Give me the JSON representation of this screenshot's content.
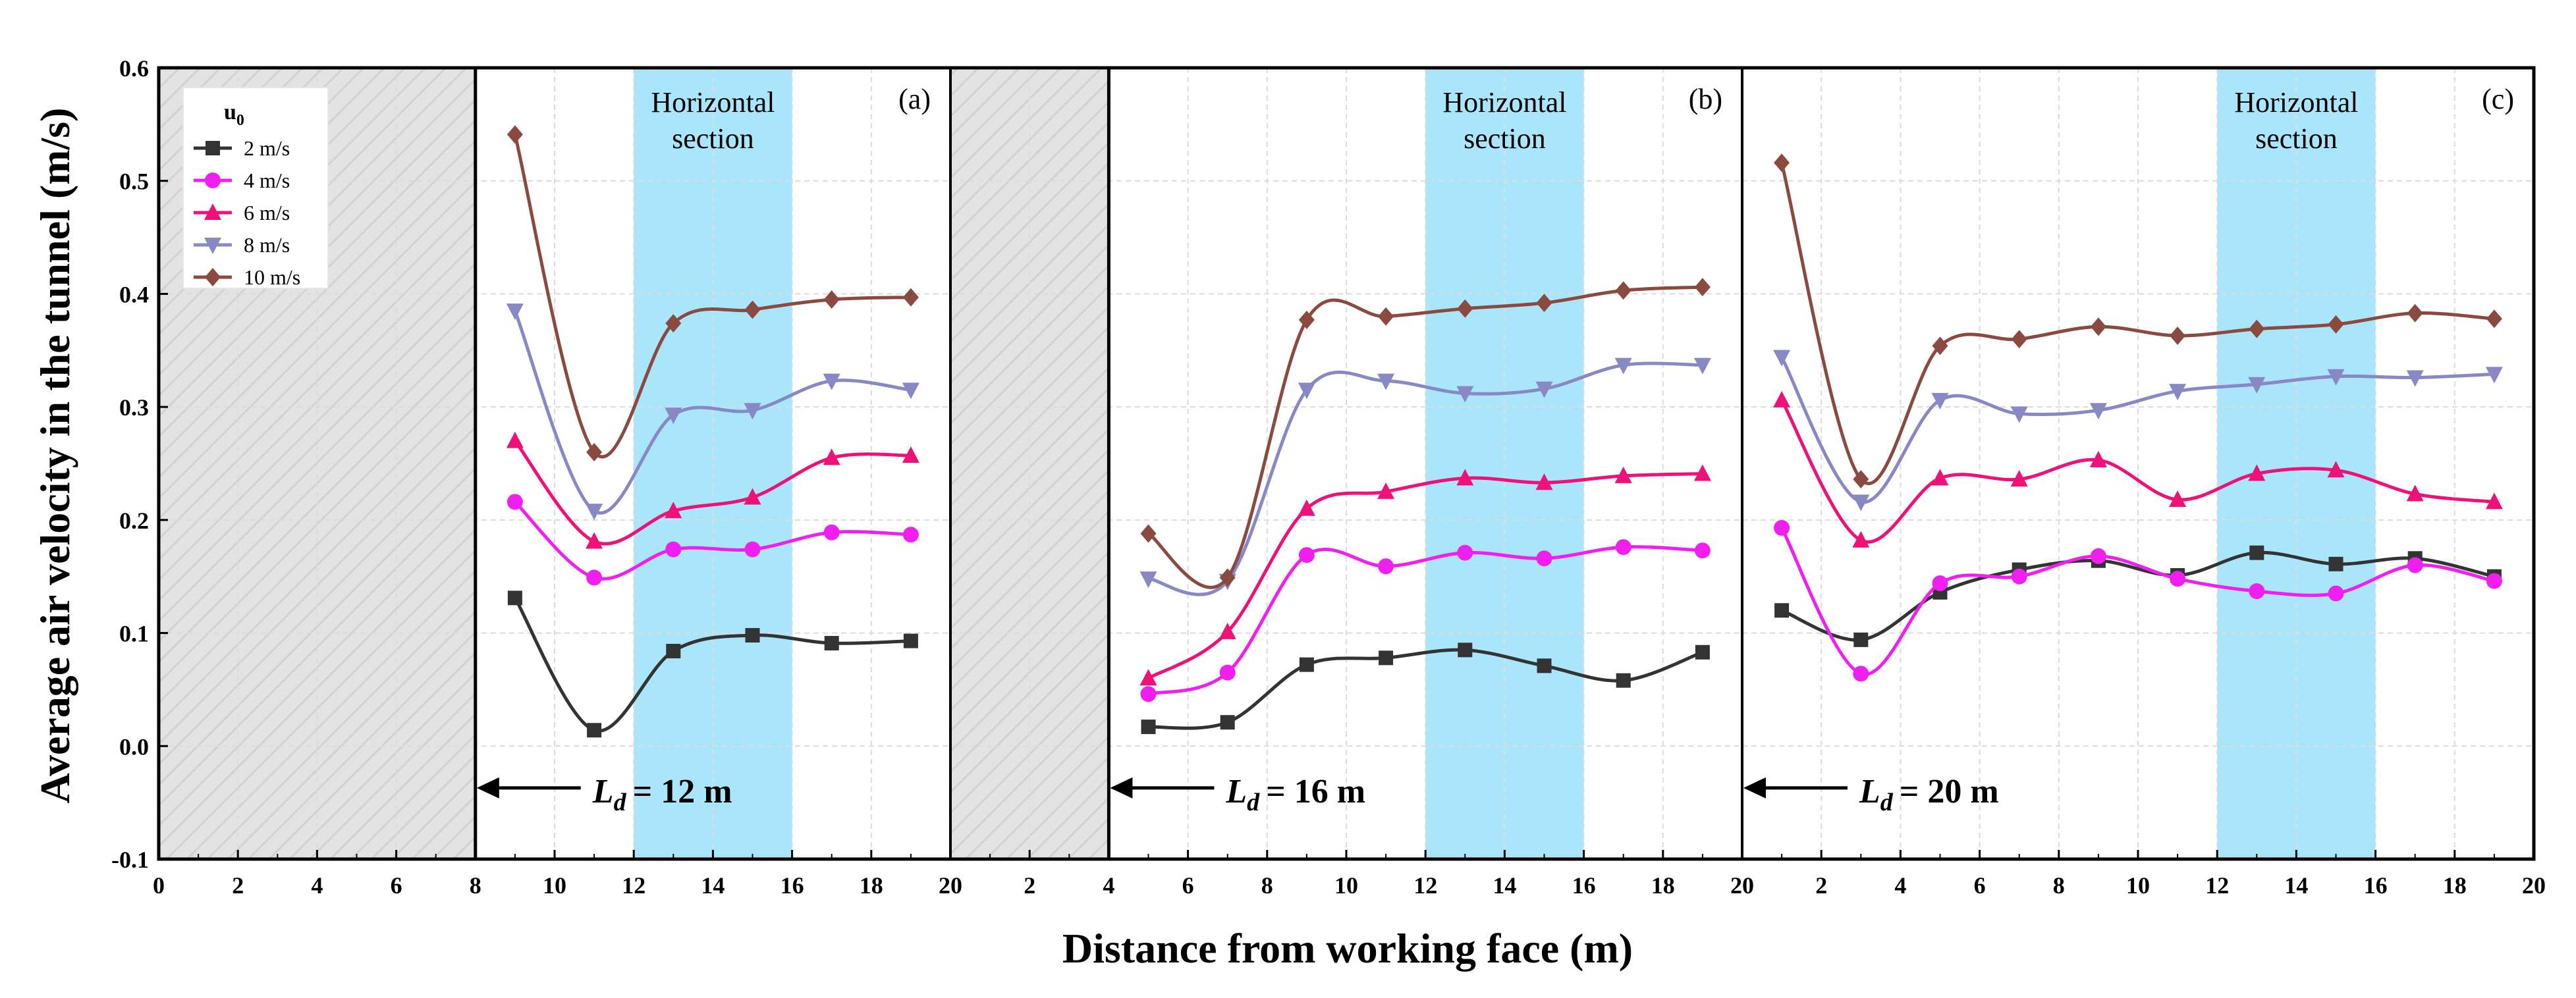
{
  "chart_data": {
    "type": "line",
    "xlabel": "Distance from working face (m)",
    "ylabel": "Average air velocity in the tunnel (m/s)",
    "ylim": [
      -0.1,
      0.6
    ],
    "y_ticks": [
      "-0.1",
      "0.0",
      "0.1",
      "0.2",
      "0.3",
      "0.4",
      "0.5",
      "0.6"
    ],
    "legend": {
      "title": "u",
      "title_sub": "0",
      "position": "top-left",
      "entries": [
        "2 m/s",
        "4 m/s",
        "6 m/s",
        "8 m/s",
        "10 m/s"
      ]
    },
    "shaded_label_line1": "Horizontal",
    "shaded_label_line2": "section",
    "ld_prefix": "L",
    "ld_sub": "d",
    "colors": {
      "2 m/s": "#333333",
      "4 m/s": "#f01ff0",
      "6 m/s": "#ee1177",
      "8 m/s": "#8888c4",
      "10 m/s": "#8b4a3f",
      "horizontal_section": "#aae6fb",
      "hatch": "#e0e0e0"
    },
    "panels": [
      {
        "label": "(a)",
        "xlim": [
          0,
          20
        ],
        "x_ticks": [
          "0",
          "2",
          "4",
          "6",
          "8",
          "10",
          "12",
          "14",
          "16",
          "18",
          "20"
        ],
        "ld_value": "= 12 m",
        "ld_x": 8,
        "gray_region": [
          0,
          8
        ],
        "horizontal_section": [
          12,
          16
        ],
        "series": [
          {
            "name": "2 m/s",
            "marker": "square",
            "x": [
              9,
              11,
              13,
              15,
              17,
              19
            ],
            "values": [
              0.131,
              0.014,
              0.084,
              0.098,
              0.091,
              0.093
            ]
          },
          {
            "name": "4 m/s",
            "marker": "circle",
            "x": [
              9,
              11,
              13,
              15,
              17,
              19
            ],
            "values": [
              0.216,
              0.149,
              0.174,
              0.174,
              0.189,
              0.187
            ]
          },
          {
            "name": "6 m/s",
            "marker": "triangle-up",
            "x": [
              9,
              11,
              13,
              15,
              17,
              19
            ],
            "values": [
              0.27,
              0.181,
              0.208,
              0.22,
              0.255,
              0.257
            ]
          },
          {
            "name": "8 m/s",
            "marker": "triangle-down",
            "x": [
              9,
              11,
              13,
              15,
              17,
              19
            ],
            "values": [
              0.385,
              0.208,
              0.293,
              0.297,
              0.323,
              0.315
            ]
          },
          {
            "name": "10 m/s",
            "marker": "diamond",
            "x": [
              9,
              11,
              13,
              15,
              17,
              19
            ],
            "values": [
              0.541,
              0.26,
              0.374,
              0.386,
              0.395,
              0.397
            ]
          }
        ]
      },
      {
        "label": "(b)",
        "xlim": [
          0,
          20
        ],
        "x_ticks": [
          "0",
          "2",
          "4",
          "6",
          "8",
          "10",
          "12",
          "14",
          "16",
          "18",
          "20"
        ],
        "ld_value": "= 16 m",
        "ld_x": 4,
        "gray_region": [
          0,
          4
        ],
        "horizontal_section": [
          12,
          16
        ],
        "series": [
          {
            "name": "2 m/s",
            "marker": "square",
            "x": [
              5,
              7,
              9,
              11,
              13,
              15,
              17,
              19
            ],
            "values": [
              0.017,
              0.021,
              0.072,
              0.078,
              0.085,
              0.071,
              0.058,
              0.083
            ]
          },
          {
            "name": "4 m/s",
            "marker": "circle",
            "x": [
              5,
              7,
              9,
              11,
              13,
              15,
              17,
              19
            ],
            "values": [
              0.046,
              0.065,
              0.169,
              0.159,
              0.171,
              0.166,
              0.176,
              0.173
            ]
          },
          {
            "name": "6 m/s",
            "marker": "triangle-up",
            "x": [
              5,
              7,
              9,
              11,
              13,
              15,
              17,
              19
            ],
            "values": [
              0.06,
              0.101,
              0.21,
              0.225,
              0.237,
              0.233,
              0.239,
              0.241
            ]
          },
          {
            "name": "8 m/s",
            "marker": "triangle-down",
            "x": [
              5,
              7,
              9,
              11,
              13,
              15,
              17,
              19
            ],
            "values": [
              0.148,
              0.146,
              0.315,
              0.323,
              0.312,
              0.316,
              0.337,
              0.337
            ]
          },
          {
            "name": "10 m/s",
            "marker": "diamond",
            "x": [
              5,
              7,
              9,
              11,
              13,
              15,
              17,
              19
            ],
            "values": [
              0.188,
              0.149,
              0.377,
              0.38,
              0.387,
              0.392,
              0.403,
              0.406
            ]
          }
        ]
      },
      {
        "label": "(c)",
        "xlim": [
          0,
          20
        ],
        "x_ticks": [
          "0",
          "2",
          "4",
          "6",
          "8",
          "10",
          "12",
          "14",
          "16",
          "18",
          "20"
        ],
        "ld_value": "= 20 m",
        "ld_x": 0,
        "gray_region": null,
        "horizontal_section": [
          12,
          16
        ],
        "series": [
          {
            "name": "2 m/s",
            "marker": "square",
            "x": [
              1,
              3,
              5,
              7,
              9,
              11,
              13,
              15,
              17,
              19
            ],
            "values": [
              0.12,
              0.094,
              0.136,
              0.156,
              0.164,
              0.151,
              0.171,
              0.161,
              0.166,
              0.15
            ]
          },
          {
            "name": "4 m/s",
            "marker": "circle",
            "x": [
              1,
              3,
              5,
              7,
              9,
              11,
              13,
              15,
              17,
              19
            ],
            "values": [
              0.193,
              0.064,
              0.144,
              0.15,
              0.168,
              0.148,
              0.137,
              0.135,
              0.16,
              0.146
            ]
          },
          {
            "name": "6 m/s",
            "marker": "triangle-up",
            "x": [
              1,
              3,
              5,
              7,
              9,
              11,
              13,
              15,
              17,
              19
            ],
            "values": [
              0.306,
              0.182,
              0.237,
              0.236,
              0.253,
              0.218,
              0.241,
              0.244,
              0.223,
              0.216
            ]
          },
          {
            "name": "8 m/s",
            "marker": "triangle-down",
            "x": [
              1,
              3,
              5,
              7,
              9,
              11,
              13,
              15,
              17,
              19
            ],
            "values": [
              0.344,
              0.216,
              0.306,
              0.294,
              0.297,
              0.314,
              0.32,
              0.327,
              0.326,
              0.329
            ]
          },
          {
            "name": "10 m/s",
            "marker": "diamond",
            "x": [
              1,
              3,
              5,
              7,
              9,
              11,
              13,
              15,
              17,
              19
            ],
            "values": [
              0.516,
              0.236,
              0.354,
              0.36,
              0.371,
              0.363,
              0.369,
              0.373,
              0.383,
              0.378
            ]
          }
        ]
      }
    ]
  }
}
